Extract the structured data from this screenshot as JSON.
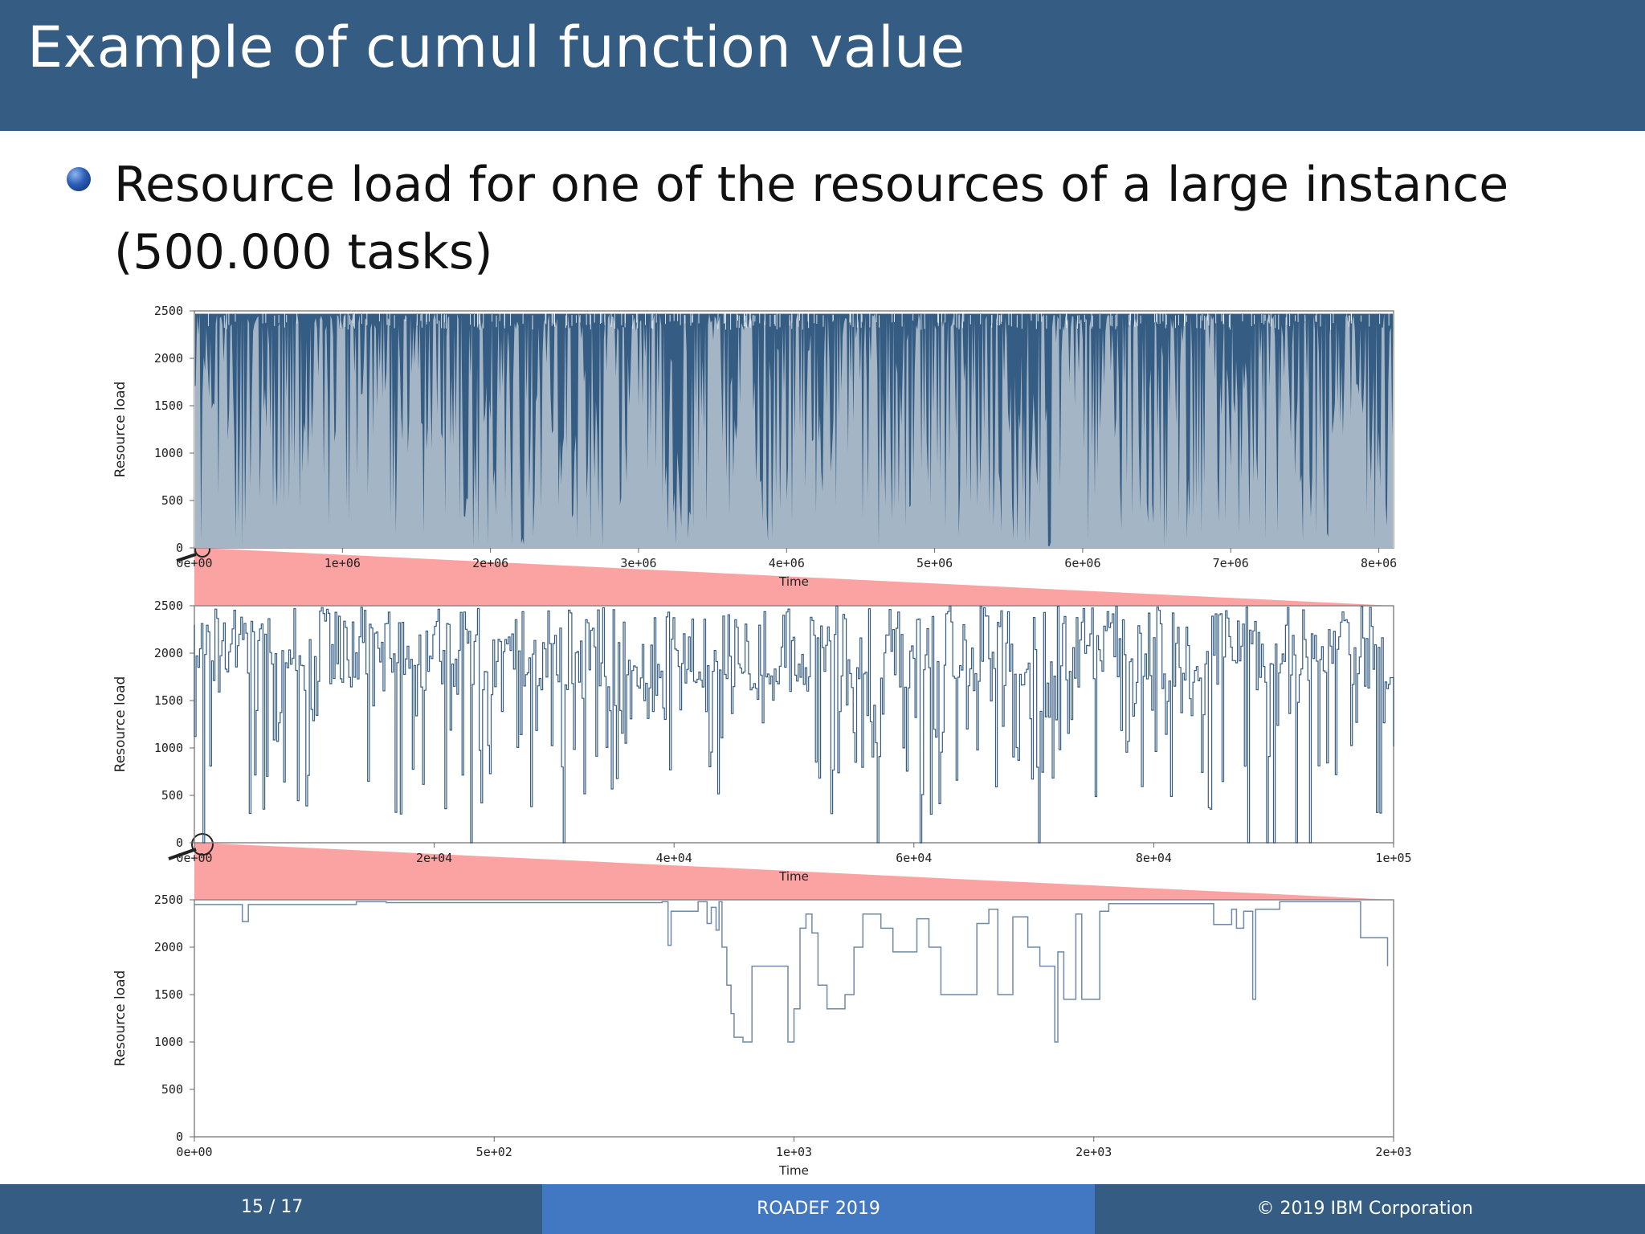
{
  "slide": {
    "title": "Example of cumul function value",
    "bullet": "Resource load for one of the resources of a large instance (500.000 tasks)"
  },
  "footer": {
    "page": "15 / 17",
    "conference": "ROADEF 2019",
    "copyright": "© 2019 IBM Corporation"
  },
  "colors": {
    "header": "#355c82",
    "footer_mid": "#4277c1",
    "series": "#355c82",
    "zoom_band": "#fba3a3"
  },
  "chart_data": [
    {
      "type": "area",
      "xlabel": "Time",
      "ylabel": "Resource load",
      "xlim": [
        0,
        8100000
      ],
      "ylim": [
        0,
        2500
      ],
      "x_ticks": [
        "0e+00",
        "1e+06",
        "2e+06",
        "3e+06",
        "4e+06",
        "5e+06",
        "6e+06",
        "7e+06",
        "8e+06"
      ],
      "x_tick_values": [
        0,
        1000000,
        2000000,
        3000000,
        4000000,
        5000000,
        6000000,
        7000000,
        8000000
      ],
      "y_ticks": [
        0,
        500,
        1000,
        1500,
        2000,
        2500
      ],
      "values_summary": "dense signal mostly between 1000 and 2480, frequent dips toward 0",
      "zoom_range": [
        0,
        100000
      ]
    },
    {
      "type": "line",
      "xlabel": "Time",
      "ylabel": "Resource load",
      "xlim": [
        0,
        100000
      ],
      "ylim": [
        0,
        2500
      ],
      "x_ticks": [
        "0e+00",
        "2e+04",
        "4e+04",
        "6e+04",
        "8e+04",
        "1e+05"
      ],
      "x_tick_values": [
        0,
        20000,
        40000,
        60000,
        80000,
        100000
      ],
      "y_ticks": [
        0,
        500,
        1000,
        1500,
        2000,
        2500
      ],
      "values_summary": "step signal fluctuating between roughly 300 and 2500",
      "zoom_range": [
        0,
        2000
      ]
    },
    {
      "type": "line",
      "xlabel": "Time",
      "ylabel": "Resource load",
      "xlim": [
        0,
        2000
      ],
      "ylim": [
        0,
        2500
      ],
      "x_ticks": [
        "0e+00",
        "5e+02",
        "1e+03",
        "2e+03",
        "2e+03"
      ],
      "x_tick_values": [
        0,
        500,
        1000,
        1500,
        2000
      ],
      "y_ticks": [
        0,
        500,
        1000,
        1500,
        2000,
        2500
      ],
      "step_points": [
        [
          0,
          2450
        ],
        [
          80,
          2450
        ],
        [
          80,
          2270
        ],
        [
          90,
          2270
        ],
        [
          90,
          2450
        ],
        [
          270,
          2450
        ],
        [
          270,
          2480
        ],
        [
          320,
          2480
        ],
        [
          320,
          2470
        ],
        [
          780,
          2470
        ],
        [
          780,
          2480
        ],
        [
          790,
          2480
        ],
        [
          790,
          2020
        ],
        [
          795,
          2020
        ],
        [
          795,
          2380
        ],
        [
          840,
          2380
        ],
        [
          840,
          2480
        ],
        [
          855,
          2480
        ],
        [
          855,
          2250
        ],
        [
          862,
          2250
        ],
        [
          862,
          2420
        ],
        [
          870,
          2420
        ],
        [
          870,
          2180
        ],
        [
          875,
          2180
        ],
        [
          875,
          2480
        ],
        [
          880,
          2480
        ],
        [
          880,
          2000
        ],
        [
          888,
          2000
        ],
        [
          888,
          1600
        ],
        [
          895,
          1600
        ],
        [
          895,
          1300
        ],
        [
          900,
          1300
        ],
        [
          900,
          1050
        ],
        [
          915,
          1050
        ],
        [
          915,
          1000
        ],
        [
          930,
          1000
        ],
        [
          930,
          1800
        ],
        [
          990,
          1800
        ],
        [
          990,
          1000
        ],
        [
          1000,
          1000
        ],
        [
          1000,
          1350
        ],
        [
          1010,
          1350
        ],
        [
          1010,
          2200
        ],
        [
          1020,
          2200
        ],
        [
          1020,
          2350
        ],
        [
          1030,
          2350
        ],
        [
          1030,
          2150
        ],
        [
          1040,
          2150
        ],
        [
          1040,
          1600
        ],
        [
          1055,
          1600
        ],
        [
          1055,
          1350
        ],
        [
          1085,
          1350
        ],
        [
          1085,
          1500
        ],
        [
          1100,
          1500
        ],
        [
          1100,
          2000
        ],
        [
          1115,
          2000
        ],
        [
          1115,
          2350
        ],
        [
          1145,
          2350
        ],
        [
          1145,
          2200
        ],
        [
          1165,
          2200
        ],
        [
          1165,
          1950
        ],
        [
          1205,
          1950
        ],
        [
          1205,
          2300
        ],
        [
          1225,
          2300
        ],
        [
          1225,
          2000
        ],
        [
          1245,
          2000
        ],
        [
          1245,
          1500
        ],
        [
          1305,
          1500
        ],
        [
          1305,
          2250
        ],
        [
          1325,
          2250
        ],
        [
          1325,
          2400
        ],
        [
          1340,
          2400
        ],
        [
          1340,
          1500
        ],
        [
          1365,
          1500
        ],
        [
          1365,
          2320
        ],
        [
          1390,
          2320
        ],
        [
          1390,
          2000
        ],
        [
          1410,
          2000
        ],
        [
          1410,
          1800
        ],
        [
          1435,
          1800
        ],
        [
          1435,
          1000
        ],
        [
          1440,
          1000
        ],
        [
          1440,
          1950
        ],
        [
          1450,
          1950
        ],
        [
          1450,
          1450
        ],
        [
          1470,
          1450
        ],
        [
          1470,
          2350
        ],
        [
          1480,
          2350
        ],
        [
          1480,
          1450
        ],
        [
          1510,
          1450
        ],
        [
          1510,
          2380
        ],
        [
          1525,
          2380
        ],
        [
          1525,
          2460
        ],
        [
          1700,
          2460
        ],
        [
          1700,
          2240
        ],
        [
          1730,
          2240
        ],
        [
          1730,
          2400
        ],
        [
          1738,
          2400
        ],
        [
          1738,
          2200
        ],
        [
          1750,
          2200
        ],
        [
          1750,
          2380
        ],
        [
          1765,
          2380
        ],
        [
          1765,
          1450
        ],
        [
          1770,
          1450
        ],
        [
          1770,
          2400
        ],
        [
          1810,
          2400
        ],
        [
          1810,
          2480
        ],
        [
          1945,
          2480
        ],
        [
          1945,
          2100
        ],
        [
          1990,
          2100
        ],
        [
          1990,
          1800
        ]
      ],
      "annotations": [
        "zoom band from chart 2 range 0-2000 to this chart"
      ]
    }
  ]
}
